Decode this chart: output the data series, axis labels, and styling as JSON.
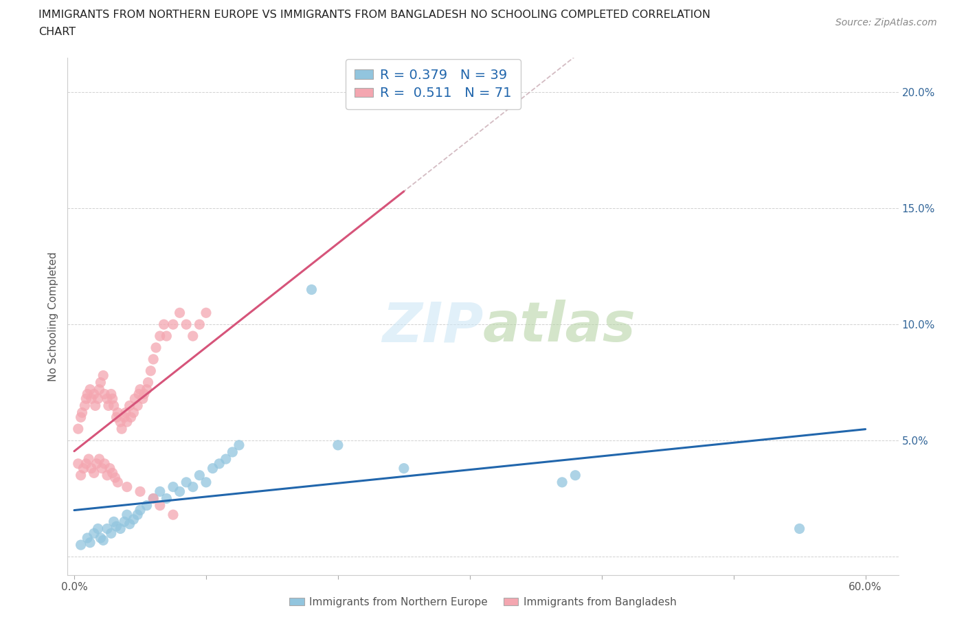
{
  "title_line1": "IMMIGRANTS FROM NORTHERN EUROPE VS IMMIGRANTS FROM BANGLADESH NO SCHOOLING COMPLETED CORRELATION",
  "title_line2": "CHART",
  "source": "Source: ZipAtlas.com",
  "ylabel": "No Schooling Completed",
  "blue_R": 0.379,
  "blue_N": 39,
  "pink_R": 0.511,
  "pink_N": 71,
  "blue_color": "#92C5DE",
  "pink_color": "#F4A6B0",
  "blue_line_color": "#2166AC",
  "pink_line_color": "#D6547A",
  "watermark_zip": "ZIP",
  "watermark_atlas": "atlas",
  "xlim": [
    -0.005,
    0.625
  ],
  "ylim": [
    -0.008,
    0.215
  ],
  "yticks": [
    0.0,
    0.05,
    0.1,
    0.15,
    0.2
  ],
  "ytick_labels": [
    "",
    "5.0%",
    "10.0%",
    "15.0%",
    "20.0%"
  ],
  "xticks": [
    0.0,
    0.1,
    0.2,
    0.3,
    0.4,
    0.5,
    0.6
  ],
  "xtick_labels": [
    "0.0%",
    "",
    "",
    "",
    "",
    "",
    "60.0%"
  ],
  "blue_scatter_x": [
    0.005,
    0.01,
    0.012,
    0.015,
    0.018,
    0.02,
    0.022,
    0.025,
    0.028,
    0.03,
    0.032,
    0.035,
    0.038,
    0.04,
    0.042,
    0.045,
    0.048,
    0.05,
    0.055,
    0.06,
    0.065,
    0.07,
    0.075,
    0.08,
    0.085,
    0.09,
    0.095,
    0.1,
    0.105,
    0.11,
    0.115,
    0.12,
    0.125,
    0.18,
    0.2,
    0.25,
    0.38,
    0.55,
    0.37
  ],
  "blue_scatter_y": [
    0.005,
    0.008,
    0.006,
    0.01,
    0.012,
    0.008,
    0.007,
    0.012,
    0.01,
    0.015,
    0.013,
    0.012,
    0.015,
    0.018,
    0.014,
    0.016,
    0.018,
    0.02,
    0.022,
    0.025,
    0.028,
    0.025,
    0.03,
    0.028,
    0.032,
    0.03,
    0.035,
    0.032,
    0.038,
    0.04,
    0.042,
    0.045,
    0.048,
    0.115,
    0.048,
    0.038,
    0.035,
    0.012,
    0.032
  ],
  "pink_scatter_x": [
    0.003,
    0.005,
    0.006,
    0.008,
    0.009,
    0.01,
    0.012,
    0.013,
    0.015,
    0.016,
    0.018,
    0.019,
    0.02,
    0.022,
    0.023,
    0.025,
    0.026,
    0.028,
    0.029,
    0.03,
    0.032,
    0.033,
    0.035,
    0.036,
    0.038,
    0.039,
    0.04,
    0.042,
    0.043,
    0.045,
    0.046,
    0.048,
    0.049,
    0.05,
    0.052,
    0.053,
    0.055,
    0.056,
    0.058,
    0.06,
    0.062,
    0.065,
    0.068,
    0.07,
    0.075,
    0.08,
    0.085,
    0.09,
    0.095,
    0.1,
    0.003,
    0.005,
    0.007,
    0.009,
    0.011,
    0.013,
    0.015,
    0.017,
    0.019,
    0.021,
    0.023,
    0.025,
    0.027,
    0.029,
    0.031,
    0.033,
    0.04,
    0.05,
    0.06,
    0.065,
    0.075
  ],
  "pink_scatter_y": [
    0.055,
    0.06,
    0.062,
    0.065,
    0.068,
    0.07,
    0.072,
    0.068,
    0.07,
    0.065,
    0.068,
    0.072,
    0.075,
    0.078,
    0.07,
    0.068,
    0.065,
    0.07,
    0.068,
    0.065,
    0.06,
    0.062,
    0.058,
    0.055,
    0.06,
    0.062,
    0.058,
    0.065,
    0.06,
    0.062,
    0.068,
    0.065,
    0.07,
    0.072,
    0.068,
    0.07,
    0.072,
    0.075,
    0.08,
    0.085,
    0.09,
    0.095,
    0.1,
    0.095,
    0.1,
    0.105,
    0.1,
    0.095,
    0.1,
    0.105,
    0.04,
    0.035,
    0.038,
    0.04,
    0.042,
    0.038,
    0.036,
    0.04,
    0.042,
    0.038,
    0.04,
    0.035,
    0.038,
    0.036,
    0.034,
    0.032,
    0.03,
    0.028,
    0.025,
    0.022,
    0.018
  ]
}
